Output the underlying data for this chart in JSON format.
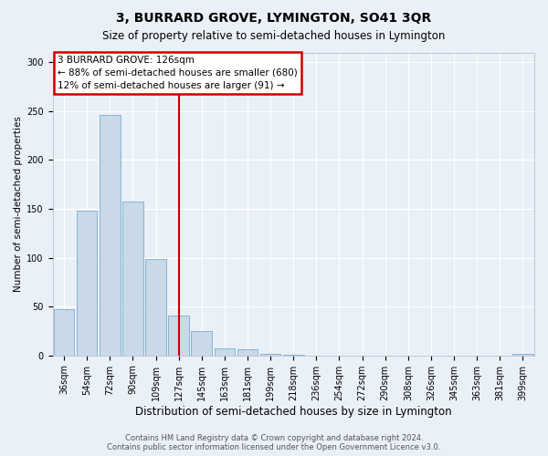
{
  "title": "3, BURRARD GROVE, LYMINGTON, SO41 3QR",
  "subtitle": "Size of property relative to semi-detached houses in Lymington",
  "xlabel": "Distribution of semi-detached houses by size in Lymington",
  "ylabel": "Number of semi-detached properties",
  "categories": [
    "36sqm",
    "54sqm",
    "72sqm",
    "90sqm",
    "109sqm",
    "127sqm",
    "145sqm",
    "163sqm",
    "181sqm",
    "199sqm",
    "218sqm",
    "236sqm",
    "254sqm",
    "272sqm",
    "290sqm",
    "308sqm",
    "326sqm",
    "345sqm",
    "363sqm",
    "381sqm",
    "399sqm"
  ],
  "values": [
    47,
    148,
    246,
    157,
    99,
    41,
    25,
    7,
    6,
    2,
    1,
    0,
    0,
    0,
    0,
    0,
    0,
    0,
    0,
    0,
    2
  ],
  "highlight_index": 5,
  "bar_color_normal": "#c9d9e8",
  "bar_edgecolor": "#7aadd0",
  "vline_color": "#cc0000",
  "annotation_title": "3 BURRARD GROVE: 126sqm",
  "annotation_line2": "← 88% of semi-detached houses are smaller (680)",
  "annotation_line3": "12% of semi-detached houses are larger (91) →",
  "annotation_box_facecolor": "#ffffff",
  "annotation_box_edgecolor": "#cc0000",
  "ylim": [
    0,
    310
  ],
  "yticks": [
    0,
    50,
    100,
    150,
    200,
    250,
    300
  ],
  "background_color": "#eaf0f8",
  "grid_color": "#ffffff",
  "title_fontsize": 10,
  "subtitle_fontsize": 8.5,
  "ylabel_fontsize": 7.5,
  "xlabel_fontsize": 8.5,
  "tick_fontsize": 7,
  "annotation_fontsize": 7.5,
  "footer_line1": "Contains HM Land Registry data © Crown copyright and database right 2024.",
  "footer_line2": "Contains public sector information licensed under the Open Government Licence v3.0."
}
